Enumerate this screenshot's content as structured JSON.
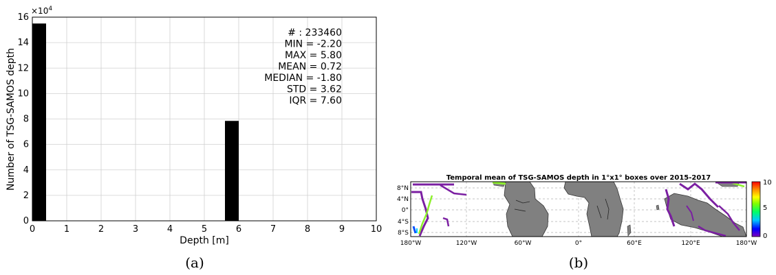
{
  "chart_data": [
    {
      "type": "bar",
      "panel_label": "(a)",
      "xlabel": "Depth [m]",
      "ylabel": "Number of TSG-SAMOS depth",
      "scale_label": "×10",
      "scale_exponent": "4",
      "xlim": [
        0,
        10
      ],
      "ylim": [
        0,
        16
      ],
      "grid": true,
      "x_ticks": [
        "0",
        "1",
        "2",
        "3",
        "4",
        "5",
        "6",
        "7",
        "8",
        "9",
        "10"
      ],
      "y_ticks": [
        "0",
        "2",
        "4",
        "6",
        "8",
        "10",
        "12",
        "14",
        "16"
      ],
      "bar_width": 0.4,
      "bars": [
        {
          "x": 0.2,
          "value": 15.5
        },
        {
          "x": 5.8,
          "value": 7.85
        }
      ],
      "stats": [
        "# : 233460",
        "MIN = -2.20",
        "MAX =  5.80",
        "MEAN = 0.72",
        "MEDIAN = -1.80",
        "STD = 3.62",
        "IQR = 7.60"
      ]
    },
    {
      "type": "heatmap",
      "panel_label": "(b)",
      "title": "Temporal mean of TSG-SAMOS depth in 1°x1° boxes over 2015-2017",
      "x_ticks": [
        "180°W",
        "120°W",
        "60°W",
        "0°",
        "60°E",
        "120°E",
        "180°W"
      ],
      "y_ticks": [
        "8°N",
        "4°N",
        "0°",
        "4°S",
        "8°S"
      ],
      "colorbar_ticks": [
        "10",
        "5",
        "0"
      ],
      "colorbar_range": [
        0,
        10
      ],
      "colormap": [
        "#7f00bf",
        "#0000ff",
        "#00c8ff",
        "#00ff66",
        "#7fff00",
        "#ffff00",
        "#ff8c00",
        "#ff0000"
      ],
      "land_color": "#808080",
      "data_colors": {
        "high_depth": "#7b1fa2",
        "low_depth": "#8ef02e",
        "mid_blue": "#0050ff",
        "cyan": "#00c8ff"
      }
    }
  ]
}
